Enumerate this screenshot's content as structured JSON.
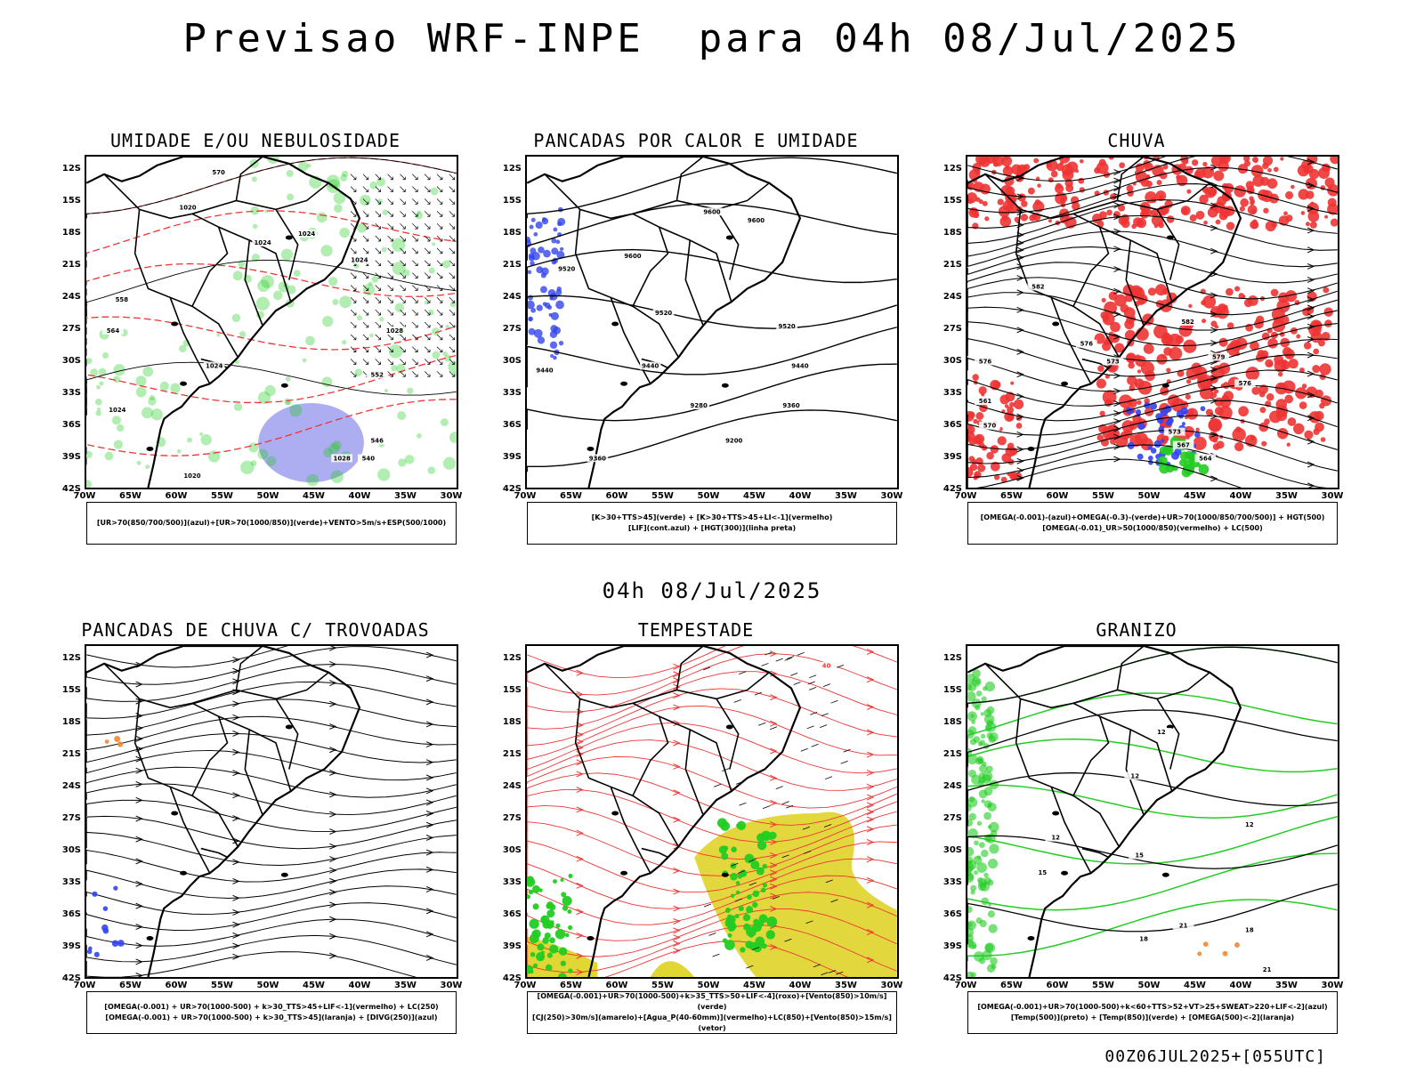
{
  "header": {
    "title": "Previsao WRF-INPE  para 04h 08/Jul/2025",
    "mid_title": "04h 08/Jul/2025",
    "footer": "00Z06JUL2025+[055UTC]"
  },
  "axes": {
    "lat_labels": [
      "12S",
      "15S",
      "18S",
      "21S",
      "24S",
      "27S",
      "30S",
      "33S",
      "36S",
      "39S",
      "42S"
    ],
    "lon_labels": [
      "70W",
      "65W",
      "60W",
      "55W",
      "50W",
      "45W",
      "40W",
      "35W",
      "30W"
    ]
  },
  "panels": [
    {
      "id": "umidade",
      "title": "UMIDADE E/OU NEBULOSIDADE",
      "legend_lines": [
        "[UR>70(850/700/500)](azul)+[UR>70(1000/850)](verde)+VENTO>5m/s+ESP(500/1000)"
      ],
      "contour_labels": [
        "1020",
        "1024",
        "1024",
        "1024",
        "1028",
        "1024",
        "1024",
        "1020",
        "1028",
        "570",
        "564",
        "558",
        "552",
        "546",
        "540"
      ]
    },
    {
      "id": "pancadas-calor",
      "title": "PANCADAS POR CALOR E UMIDADE",
      "legend_lines": [
        "[K>30+TTS>45](verde) + [K>30+TTS>45+LI<-1](vermelho)",
        "[LIF](cont.azul) + [HGT(300)](linha preta)"
      ],
      "contour_labels": [
        "9600",
        "9600",
        "9600",
        "9520",
        "9520",
        "9520",
        "9440",
        "9440",
        "9360",
        "9280",
        "9200",
        "9360",
        "9440"
      ]
    },
    {
      "id": "chuva",
      "title": "CHUVA",
      "legend_lines": [
        "[OMEGA(-0.001)-(azul)+OMEGA(-0.3)-(verde)+UR>70(1000/850/700/500)] + HGT(500)",
        "[OMEGA(-0.01)_UR>50(1000/850)(vermelho) + LC(500)"
      ],
      "contour_labels": [
        "582",
        "576",
        "573",
        "579",
        "576",
        "573",
        "567",
        "564",
        "561",
        "570",
        "576",
        "582"
      ]
    },
    {
      "id": "pancadas-trovoadas",
      "title": "PANCADAS DE CHUVA C/ TROVOADAS",
      "legend_lines": [
        "[OMEGA(-0.001) + UR>70(1000-500) + k>30_TTS>45+LIF<-1](vermelho) + LC(250)",
        "[OMEGA(-0.001) + UR>70(1000-500) + k>30_TTS>45](laranja) + [DIVG(250)](azul)"
      ],
      "contour_labels": []
    },
    {
      "id": "tempestade",
      "title": "TEMPESTADE",
      "legend_lines": [
        "[OMEGA(-0.001)+UR>70(1000-500)+k>35_TTS>50+LIF<-4](roxo)+[Vento(850)>10m/s](verde)",
        "[CJ(250)>30m/s](amarelo)+[Agua_P(40-60mm)](vermelho)+LC(850)+[Vento(850)>15m/s](vetor)"
      ],
      "contour_labels": [
        "40"
      ]
    },
    {
      "id": "granizo",
      "title": "GRANIZO",
      "legend_lines": [
        "[OMEGA(-0.001)+UR>70(1000-500)+k<60+TTS>52+VT>25+SWEAT>220+LIF<-2](azul)",
        "[Temp(500)](preto) + [Temp(850)](verde) + [OMEGA(500)<-2](laranja)"
      ],
      "contour_labels": [
        "12",
        "12",
        "12",
        "15",
        "18",
        "21",
        "21",
        "18",
        "15",
        "12"
      ]
    }
  ],
  "colors": {
    "green": "#22cc22",
    "red": "#ee3333",
    "blue": "#3344ee",
    "lavender": "#9999ee",
    "yellow": "#e0d634",
    "orange": "#ee8833"
  }
}
